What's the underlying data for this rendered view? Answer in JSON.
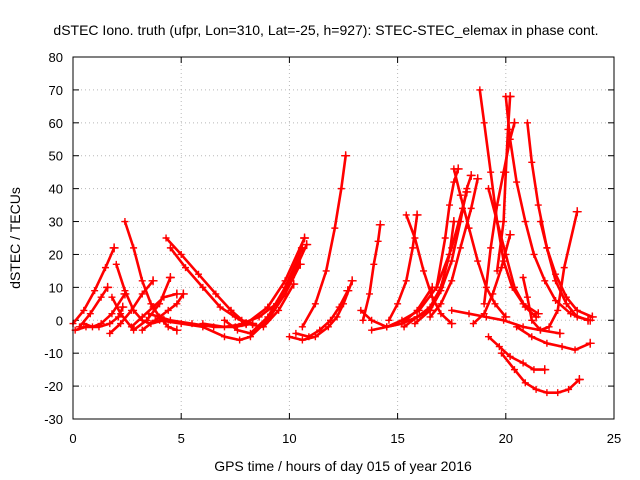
{
  "chart_data": {
    "type": "scatter",
    "title": "dSTEC Iono. truth (ufpr, Lon=310, Lat=-25, h=927): STEC-STEC_elemax in phase cont.",
    "xlabel": "GPS time / hours of day 015 of year 2016",
    "ylabel": "dSTEC  / TECUs",
    "xlim": [
      0,
      25
    ],
    "ylim": [
      -30,
      80
    ],
    "xticks": [
      0,
      5,
      10,
      15,
      20,
      25
    ],
    "yticks": [
      -30,
      -20,
      -10,
      0,
      10,
      20,
      30,
      40,
      50,
      60,
      70,
      80
    ],
    "grid": true,
    "marker": "+",
    "colors": {
      "series": "#ff0000"
    },
    "series": [
      {
        "points": [
          [
            0.0,
            -1
          ],
          [
            0.5,
            3
          ],
          [
            1.0,
            9
          ],
          [
            1.5,
            16
          ],
          [
            1.9,
            22
          ]
        ]
      },
      {
        "points": [
          [
            0.3,
            -2
          ],
          [
            0.8,
            2
          ],
          [
            1.3,
            7
          ],
          [
            1.6,
            10
          ]
        ]
      },
      {
        "points": [
          [
            0.5,
            -1
          ],
          [
            0.9,
            -2
          ],
          [
            1.3,
            -1
          ],
          [
            1.8,
            2
          ],
          [
            2.4,
            8
          ]
        ]
      },
      {
        "points": [
          [
            1.7,
            -4
          ],
          [
            2.2,
            -1
          ],
          [
            2.7,
            3
          ],
          [
            3.2,
            8
          ],
          [
            3.7,
            12
          ]
        ]
      },
      {
        "points": [
          [
            0.1,
            -3
          ],
          [
            0.6,
            -2
          ],
          [
            1.2,
            -2
          ],
          [
            1.7,
            -1
          ],
          [
            2.1,
            1
          ],
          [
            2.3,
            4
          ]
        ]
      },
      {
        "points": [
          [
            2.4,
            30
          ],
          [
            2.8,
            22
          ],
          [
            3.2,
            12
          ],
          [
            3.6,
            5
          ],
          [
            4.0,
            1
          ],
          [
            4.4,
            -2
          ],
          [
            4.8,
            -3
          ]
        ]
      },
      {
        "points": [
          [
            2.0,
            17
          ],
          [
            2.4,
            9
          ],
          [
            2.8,
            3
          ],
          [
            3.2,
            0
          ],
          [
            3.6,
            -1
          ],
          [
            4.2,
            0
          ]
        ]
      },
      {
        "points": [
          [
            1.8,
            7
          ],
          [
            2.2,
            2
          ],
          [
            2.8,
            -3
          ],
          [
            3.4,
            0
          ],
          [
            4.0,
            5
          ],
          [
            4.5,
            13
          ]
        ]
      },
      {
        "points": [
          [
            2.7,
            -2
          ],
          [
            3.2,
            1
          ],
          [
            3.7,
            4
          ],
          [
            4.2,
            7
          ],
          [
            4.8,
            8
          ]
        ]
      },
      {
        "points": [
          [
            3.2,
            -3
          ],
          [
            3.8,
            0
          ],
          [
            4.4,
            3
          ],
          [
            4.8,
            5
          ],
          [
            5.1,
            8
          ]
        ]
      },
      {
        "points": [
          [
            4.3,
            25
          ],
          [
            5.0,
            20
          ],
          [
            5.8,
            14
          ],
          [
            6.6,
            8
          ],
          [
            7.3,
            3
          ],
          [
            7.8,
            0
          ],
          [
            8.3,
            -1
          ]
        ]
      },
      {
        "points": [
          [
            4.5,
            22
          ],
          [
            5.2,
            16
          ],
          [
            6.0,
            10
          ],
          [
            6.8,
            4
          ],
          [
            7.5,
            1
          ],
          [
            8.0,
            -1
          ]
        ]
      },
      {
        "points": [
          [
            3.5,
            2
          ],
          [
            4.5,
            0
          ],
          [
            5.5,
            -1
          ],
          [
            6.5,
            -2
          ],
          [
            7.5,
            -2
          ],
          [
            8.3,
            -1
          ]
        ]
      },
      {
        "points": [
          [
            4.0,
            0
          ],
          [
            5.0,
            -1
          ],
          [
            6.0,
            -2
          ],
          [
            7.0,
            -5
          ],
          [
            7.7,
            -6
          ],
          [
            8.2,
            -5
          ],
          [
            9.0,
            0
          ],
          [
            9.8,
            8
          ],
          [
            10.5,
            17
          ]
        ]
      },
      {
        "points": [
          [
            6.0,
            -1
          ],
          [
            7.0,
            -2
          ],
          [
            8.0,
            -1
          ],
          [
            9.0,
            4
          ],
          [
            9.8,
            12
          ],
          [
            10.7,
            25
          ]
        ]
      },
      {
        "points": [
          [
            7.0,
            0
          ],
          [
            7.6,
            -3
          ],
          [
            8.2,
            -4
          ],
          [
            9.0,
            1
          ],
          [
            9.8,
            10
          ],
          [
            10.6,
            22
          ]
        ]
      },
      {
        "points": [
          [
            7.3,
            3
          ],
          [
            8.0,
            -1
          ],
          [
            8.8,
            -2
          ],
          [
            9.5,
            3
          ],
          [
            10.2,
            11
          ]
        ]
      },
      {
        "points": [
          [
            7.8,
            -1
          ],
          [
            8.6,
            1
          ],
          [
            9.4,
            5
          ],
          [
            10.1,
            13
          ],
          [
            10.8,
            23
          ]
        ]
      },
      {
        "points": [
          [
            10.0,
            -5
          ],
          [
            10.6,
            -6
          ],
          [
            11.2,
            -5
          ],
          [
            11.8,
            -2
          ],
          [
            12.2,
            1
          ],
          [
            12.5,
            5
          ],
          [
            12.9,
            12
          ]
        ]
      },
      {
        "points": [
          [
            10.3,
            -4
          ],
          [
            10.9,
            -5
          ],
          [
            11.4,
            -3
          ],
          [
            11.9,
            0
          ],
          [
            12.3,
            4
          ],
          [
            12.7,
            9
          ]
        ]
      },
      {
        "points": [
          [
            10.6,
            -2
          ],
          [
            11.2,
            5
          ],
          [
            11.7,
            15
          ],
          [
            12.1,
            28
          ],
          [
            12.4,
            40
          ],
          [
            12.6,
            50
          ]
        ]
      },
      {
        "points": [
          [
            13.3,
            3
          ],
          [
            13.8,
            0
          ],
          [
            14.5,
            -2
          ],
          [
            15.2,
            -1
          ],
          [
            15.9,
            1
          ],
          [
            16.5,
            3
          ]
        ]
      },
      {
        "points": [
          [
            13.4,
            0
          ],
          [
            13.7,
            8
          ],
          [
            13.9,
            17
          ],
          [
            14.1,
            24
          ],
          [
            14.2,
            29
          ]
        ]
      },
      {
        "points": [
          [
            13.8,
            -3
          ],
          [
            14.5,
            -2
          ],
          [
            15.2,
            -1
          ],
          [
            15.9,
            3
          ],
          [
            16.6,
            10
          ]
        ]
      },
      {
        "points": [
          [
            14.6,
            0
          ],
          [
            15.0,
            5
          ],
          [
            15.4,
            12
          ],
          [
            15.7,
            22
          ],
          [
            15.9,
            32
          ]
        ]
      },
      {
        "points": [
          [
            15.4,
            32
          ],
          [
            15.8,
            25
          ],
          [
            16.2,
            15
          ],
          [
            16.6,
            7
          ],
          [
            17.0,
            2
          ],
          [
            17.5,
            -1
          ]
        ]
      },
      {
        "points": [
          [
            15.3,
            -2
          ],
          [
            15.9,
            1
          ],
          [
            16.5,
            4
          ],
          [
            17.0,
            10
          ],
          [
            17.4,
            20
          ],
          [
            17.6,
            30
          ]
        ]
      },
      {
        "points": [
          [
            14.5,
            -2
          ],
          [
            15.2,
            0
          ],
          [
            16.0,
            3
          ],
          [
            16.8,
            10
          ],
          [
            17.5,
            22
          ],
          [
            18.0,
            34
          ],
          [
            18.2,
            39
          ]
        ]
      },
      {
        "points": [
          [
            15.8,
            -1
          ],
          [
            16.5,
            3
          ],
          [
            17.0,
            9
          ],
          [
            17.5,
            18
          ],
          [
            17.9,
            30
          ],
          [
            18.2,
            40
          ],
          [
            18.4,
            44
          ]
        ]
      },
      {
        "points": [
          [
            16.5,
            1
          ],
          [
            17.0,
            5
          ],
          [
            17.5,
            12
          ],
          [
            17.9,
            22
          ],
          [
            18.4,
            34
          ],
          [
            18.7,
            43
          ]
        ]
      },
      {
        "points": [
          [
            16.8,
            10
          ],
          [
            17.2,
            25
          ],
          [
            17.4,
            35
          ],
          [
            17.6,
            42
          ],
          [
            17.8,
            46
          ]
        ]
      },
      {
        "points": [
          [
            17.6,
            46
          ],
          [
            17.9,
            38
          ],
          [
            18.3,
            28
          ],
          [
            18.7,
            18
          ],
          [
            19.1,
            10
          ],
          [
            19.5,
            5
          ],
          [
            20.0,
            1
          ]
        ]
      },
      {
        "points": [
          [
            18.8,
            70
          ],
          [
            19.0,
            60
          ],
          [
            19.3,
            45
          ],
          [
            19.6,
            30
          ],
          [
            19.9,
            18
          ],
          [
            20.3,
            10
          ],
          [
            20.8,
            5
          ],
          [
            21.5,
            2
          ]
        ]
      },
      {
        "points": [
          [
            18.5,
            -1
          ],
          [
            19.0,
            2
          ],
          [
            19.4,
            8
          ],
          [
            19.8,
            16
          ],
          [
            20.2,
            26
          ]
        ]
      },
      {
        "points": [
          [
            19.0,
            5
          ],
          [
            19.3,
            22
          ],
          [
            19.6,
            35
          ],
          [
            19.9,
            45
          ],
          [
            20.2,
            55
          ],
          [
            20.4,
            60
          ]
        ]
      },
      {
        "points": [
          [
            19.6,
            15
          ],
          [
            19.9,
            30
          ],
          [
            20.0,
            45
          ],
          [
            20.1,
            58
          ],
          [
            20.2,
            68
          ]
        ]
      },
      {
        "points": [
          [
            20.0,
            68
          ],
          [
            20.2,
            55
          ],
          [
            20.5,
            42
          ],
          [
            20.9,
            30
          ],
          [
            21.3,
            20
          ],
          [
            21.8,
            12
          ],
          [
            22.3,
            6
          ],
          [
            23.0,
            2
          ],
          [
            23.8,
            0
          ]
        ]
      },
      {
        "points": [
          [
            19.2,
            40
          ],
          [
            19.6,
            30
          ],
          [
            20.0,
            20
          ],
          [
            20.4,
            10
          ],
          [
            20.9,
            4
          ],
          [
            21.4,
            1
          ]
        ]
      },
      {
        "points": [
          [
            21.0,
            60
          ],
          [
            21.2,
            48
          ],
          [
            21.5,
            35
          ],
          [
            21.9,
            22
          ],
          [
            22.3,
            12
          ],
          [
            22.8,
            5
          ],
          [
            23.3,
            1
          ],
          [
            23.9,
            0
          ]
        ]
      },
      {
        "points": [
          [
            21.6,
            30
          ],
          [
            21.9,
            22
          ],
          [
            22.3,
            14
          ],
          [
            22.8,
            7
          ],
          [
            23.3,
            3
          ],
          [
            24.0,
            1
          ]
        ]
      },
      {
        "points": [
          [
            20.8,
            13
          ],
          [
            21.0,
            7
          ],
          [
            21.2,
            0
          ],
          [
            21.6,
            -3
          ],
          [
            22.0,
            -2
          ],
          [
            22.4,
            3
          ],
          [
            22.7,
            16
          ],
          [
            23.3,
            33
          ]
        ]
      },
      {
        "points": [
          [
            19.2,
            -5
          ],
          [
            19.7,
            -8
          ],
          [
            20.2,
            -11
          ],
          [
            20.8,
            -13
          ],
          [
            21.3,
            -15
          ],
          [
            21.8,
            -15
          ]
        ]
      },
      {
        "points": [
          [
            19.8,
            -10
          ],
          [
            20.4,
            -15
          ],
          [
            20.9,
            -19
          ],
          [
            21.4,
            -21
          ],
          [
            21.9,
            -22
          ],
          [
            22.4,
            -22
          ],
          [
            22.9,
            -21
          ],
          [
            23.4,
            -18
          ]
        ]
      },
      {
        "points": [
          [
            20.5,
            -2
          ],
          [
            21.2,
            -5
          ],
          [
            21.9,
            -7
          ],
          [
            22.6,
            -8
          ],
          [
            23.2,
            -9
          ],
          [
            23.9,
            -7
          ]
        ]
      },
      {
        "points": [
          [
            17.5,
            3
          ],
          [
            18.3,
            2
          ],
          [
            19.1,
            1
          ],
          [
            19.9,
            0
          ],
          [
            20.8,
            -2
          ],
          [
            21.6,
            -3
          ],
          [
            22.5,
            -4
          ]
        ]
      }
    ]
  }
}
